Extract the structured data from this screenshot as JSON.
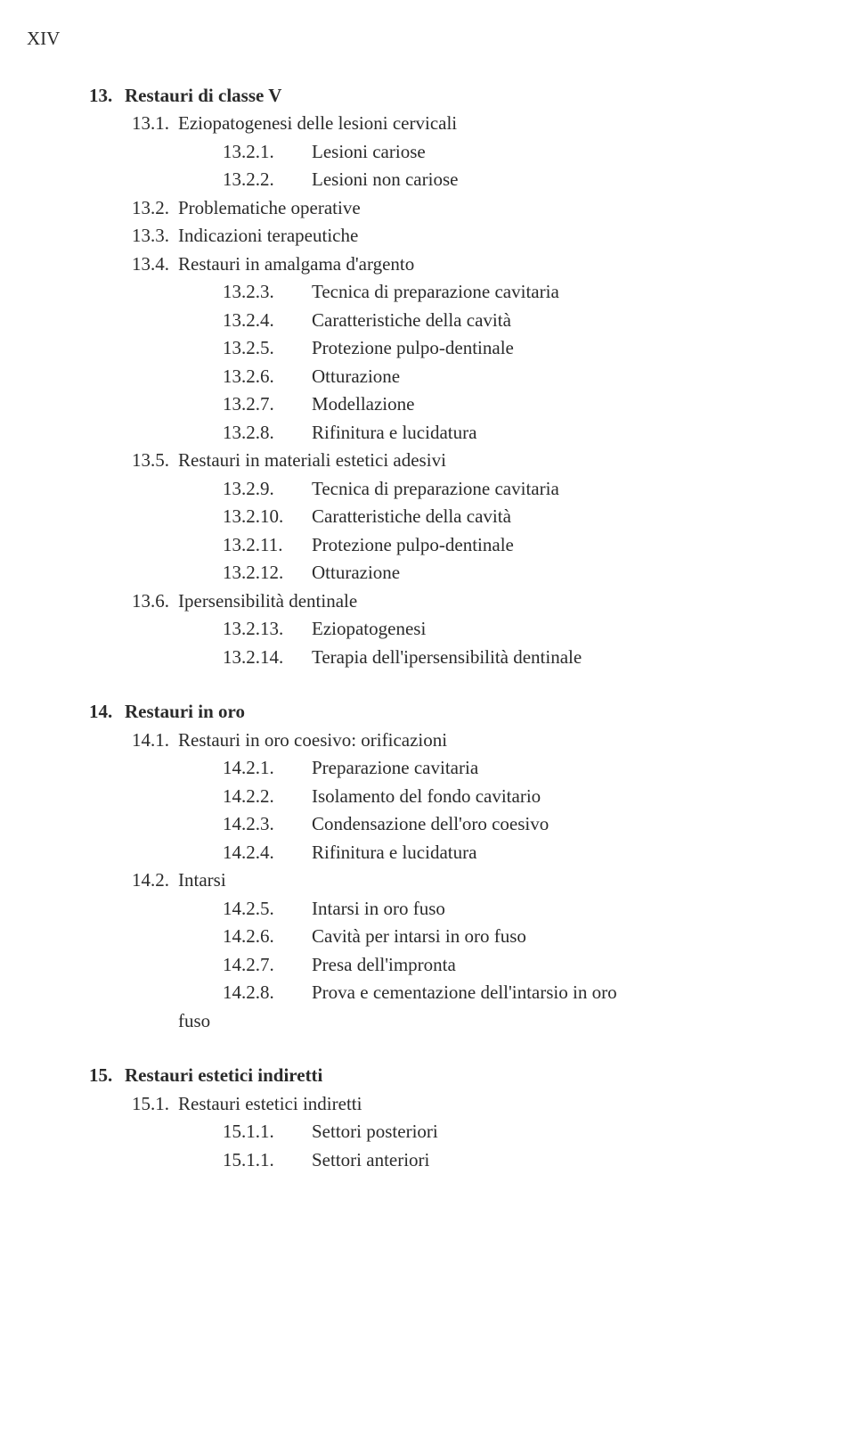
{
  "page_label": "XIV",
  "sections": [
    {
      "num": "13.",
      "title": "Restauri di classe V",
      "subs": [
        {
          "num": "13.1.",
          "title": "Eziopatogenesi delle lesioni cervicali",
          "subsubs": [
            {
              "num": "13.2.1.",
              "title": "Lesioni cariose"
            },
            {
              "num": "13.2.2.",
              "title": "Lesioni non cariose"
            }
          ]
        },
        {
          "num": "13.2.",
          "title": "Problematiche operative"
        },
        {
          "num": "13.3.",
          "title": "Indicazioni terapeutiche"
        },
        {
          "num": "13.4.",
          "title": "Restauri in amalgama d'argento",
          "subsubs": [
            {
              "num": "13.2.3.",
              "title": "Tecnica di preparazione cavitaria"
            },
            {
              "num": "13.2.4.",
              "title": "Caratteristiche della cavità"
            },
            {
              "num": "13.2.5.",
              "title": "Protezione pulpo-dentinale"
            },
            {
              "num": "13.2.6.",
              "title": "Otturazione"
            },
            {
              "num": "13.2.7.",
              "title": "Modellazione"
            },
            {
              "num": "13.2.8.",
              "title": "Rifinitura e lucidatura"
            }
          ]
        },
        {
          "num": "13.5.",
          "title": "Restauri in materiali estetici adesivi",
          "subsubs": [
            {
              "num": "13.2.9.",
              "title": "Tecnica di preparazione cavitaria"
            },
            {
              "num": "13.2.10.",
              "title": "Caratteristiche della cavità"
            },
            {
              "num": "13.2.11.",
              "title": "Protezione pulpo-dentinale"
            },
            {
              "num": "13.2.12.",
              "title": "Otturazione"
            }
          ]
        },
        {
          "num": "13.6.",
          "title": "Ipersensibilità dentinale",
          "subsubs": [
            {
              "num": "13.2.13.",
              "title": "Eziopatogenesi"
            },
            {
              "num": "13.2.14.",
              "title": "Terapia dell'ipersensibilità dentinale"
            }
          ]
        }
      ]
    },
    {
      "num": "14.",
      "title": "Restauri in oro",
      "subs": [
        {
          "num": "14.1.",
          "title": "Restauri in oro coesivo: orificazioni",
          "subsubs": [
            {
              "num": "14.2.1.",
              "title": "Preparazione cavitaria"
            },
            {
              "num": "14.2.2.",
              "title": "Isolamento del fondo cavitario"
            },
            {
              "num": "14.2.3.",
              "title": "Condensazione dell'oro coesivo"
            },
            {
              "num": "14.2.4.",
              "title": "Rifinitura e lucidatura"
            }
          ]
        },
        {
          "num": "14.2.",
          "title": "Intarsi",
          "subsubs": [
            {
              "num": "14.2.5.",
              "title": "Intarsi in oro fuso"
            },
            {
              "num": "14.2.6.",
              "title": "Cavità per intarsi in oro fuso"
            },
            {
              "num": "14.2.7.",
              "title": "Presa dell'impronta"
            },
            {
              "num": "14.2.8.",
              "title": "Prova e cementazione dell'intarsio in oro"
            }
          ],
          "trailing": "fuso"
        }
      ]
    },
    {
      "num": "15.",
      "title": "Restauri estetici indiretti",
      "subs": [
        {
          "num": "15.1.",
          "title": "Restauri estetici indiretti",
          "subsubs": [
            {
              "num": "15.1.1.",
              "title": "Settori posteriori"
            },
            {
              "num": "15.1.1.",
              "title": "Settori anteriori"
            }
          ]
        }
      ]
    }
  ]
}
